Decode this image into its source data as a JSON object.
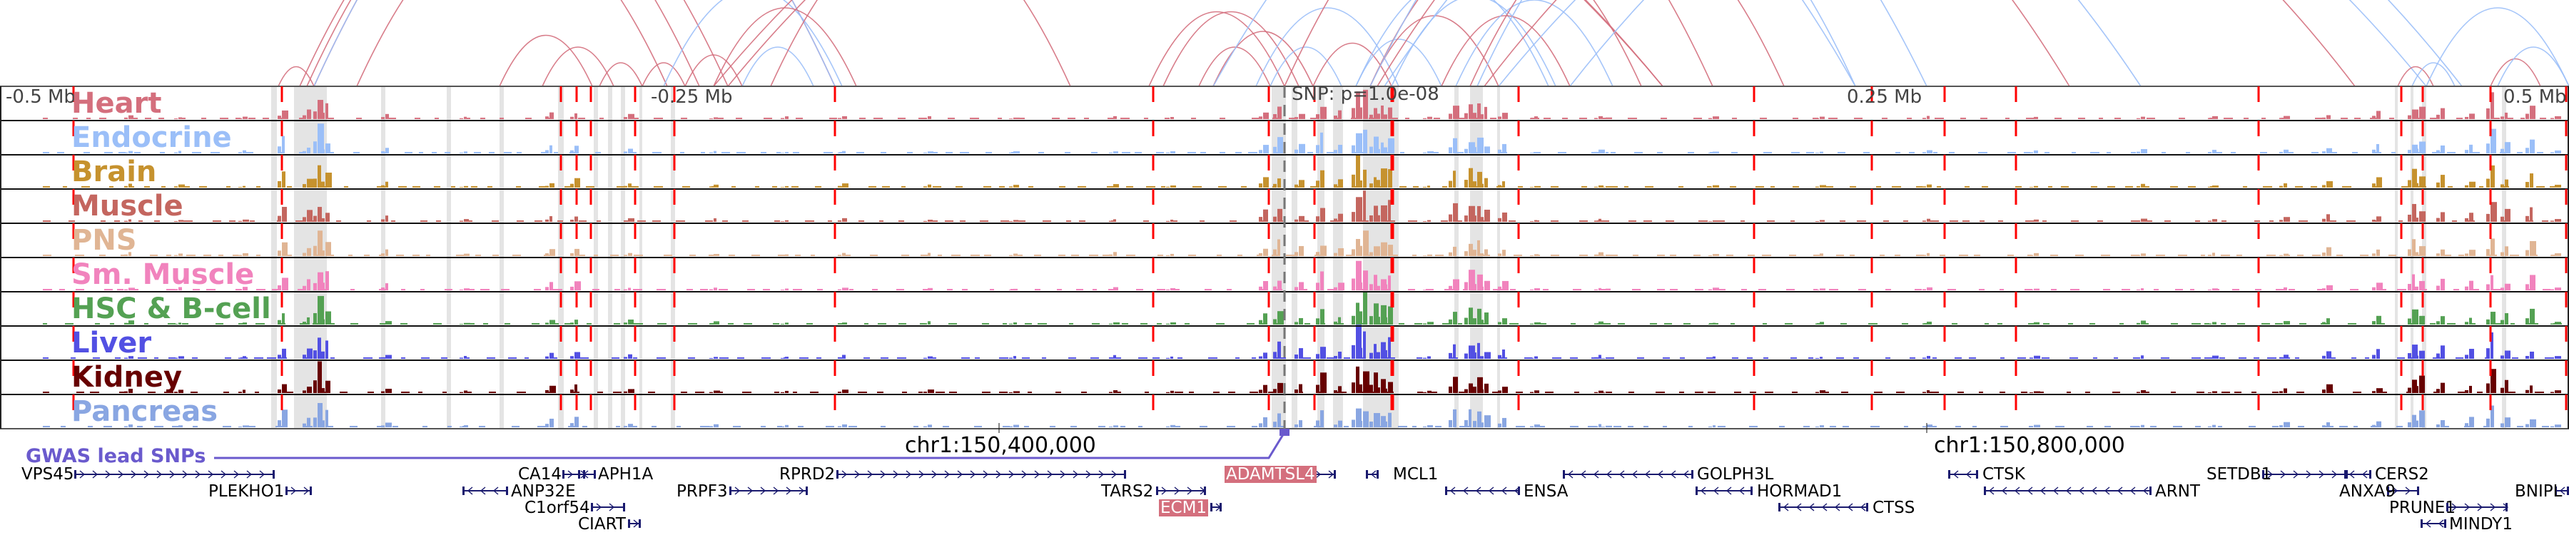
{
  "axis": {
    "left_label": "-0.5 Mb",
    "quarter_left_label": "-0.25 Mb",
    "snp_label": "SNP: p=1.0e-08",
    "quarter_right_label": "0.25 Mb",
    "right_label": "0.5 Mb"
  },
  "coordinates": {
    "left": "chr1:150,400,000",
    "right": "chr1:150,800,000"
  },
  "gwas": {
    "label": "GWAS lead SNPs",
    "color": "#6a5acd"
  },
  "tracks": [
    {
      "name": "Heart",
      "color": "#d46f7d"
    },
    {
      "name": "Endocrine",
      "color": "#9bbff8"
    },
    {
      "name": "Brain",
      "color": "#c6922e"
    },
    {
      "name": "Muscle",
      "color": "#c4665f"
    },
    {
      "name": "PNS",
      "color": "#e0b594"
    },
    {
      "name": "Sm. Muscle",
      "color": "#f183bd"
    },
    {
      "name": "HSC & B-cell",
      "color": "#54a153"
    },
    {
      "name": "Liver",
      "color": "#5250e3"
    },
    {
      "name": "Kidney",
      "color": "#670000"
    },
    {
      "name": "Pancreas",
      "color": "#89a6e2"
    }
  ],
  "genes": [
    {
      "name": "VPS45",
      "highlight": false
    },
    {
      "name": "PLEKHO1",
      "highlight": false
    },
    {
      "name": "CA14",
      "highlight": false
    },
    {
      "name": "APH1A",
      "highlight": false
    },
    {
      "name": "ANP32E",
      "highlight": false
    },
    {
      "name": "C1orf54",
      "highlight": false
    },
    {
      "name": "CIART",
      "highlight": false
    },
    {
      "name": "PRPF3",
      "highlight": false
    },
    {
      "name": "RPRD2",
      "highlight": false
    },
    {
      "name": "TARS2",
      "highlight": false
    },
    {
      "name": "ECM1",
      "highlight": true
    },
    {
      "name": "ADAMTSL4",
      "highlight": true
    },
    {
      "name": "MCL1",
      "highlight": false
    },
    {
      "name": "ENSA",
      "highlight": false
    },
    {
      "name": "GOLPH3L",
      "highlight": false
    },
    {
      "name": "HORMAD1",
      "highlight": false
    },
    {
      "name": "CTSS",
      "highlight": false
    },
    {
      "name": "CTSK",
      "highlight": false
    },
    {
      "name": "ARNT",
      "highlight": false
    },
    {
      "name": "SETDB1",
      "highlight": false
    },
    {
      "name": "CERS2",
      "highlight": false
    },
    {
      "name": "ANXA9",
      "highlight": false
    },
    {
      "name": "PRUNE1",
      "highlight": false
    },
    {
      "name": "BNIPL",
      "highlight": false
    },
    {
      "name": "MINDY1",
      "highlight": false
    }
  ],
  "colors": {
    "gene": "#1a1a6e",
    "dashed_marker": "#ff0000",
    "highlight_band": "#e4e4e4",
    "arc_red": "#d46f7d",
    "arc_blue": "#9bbff8"
  }
}
